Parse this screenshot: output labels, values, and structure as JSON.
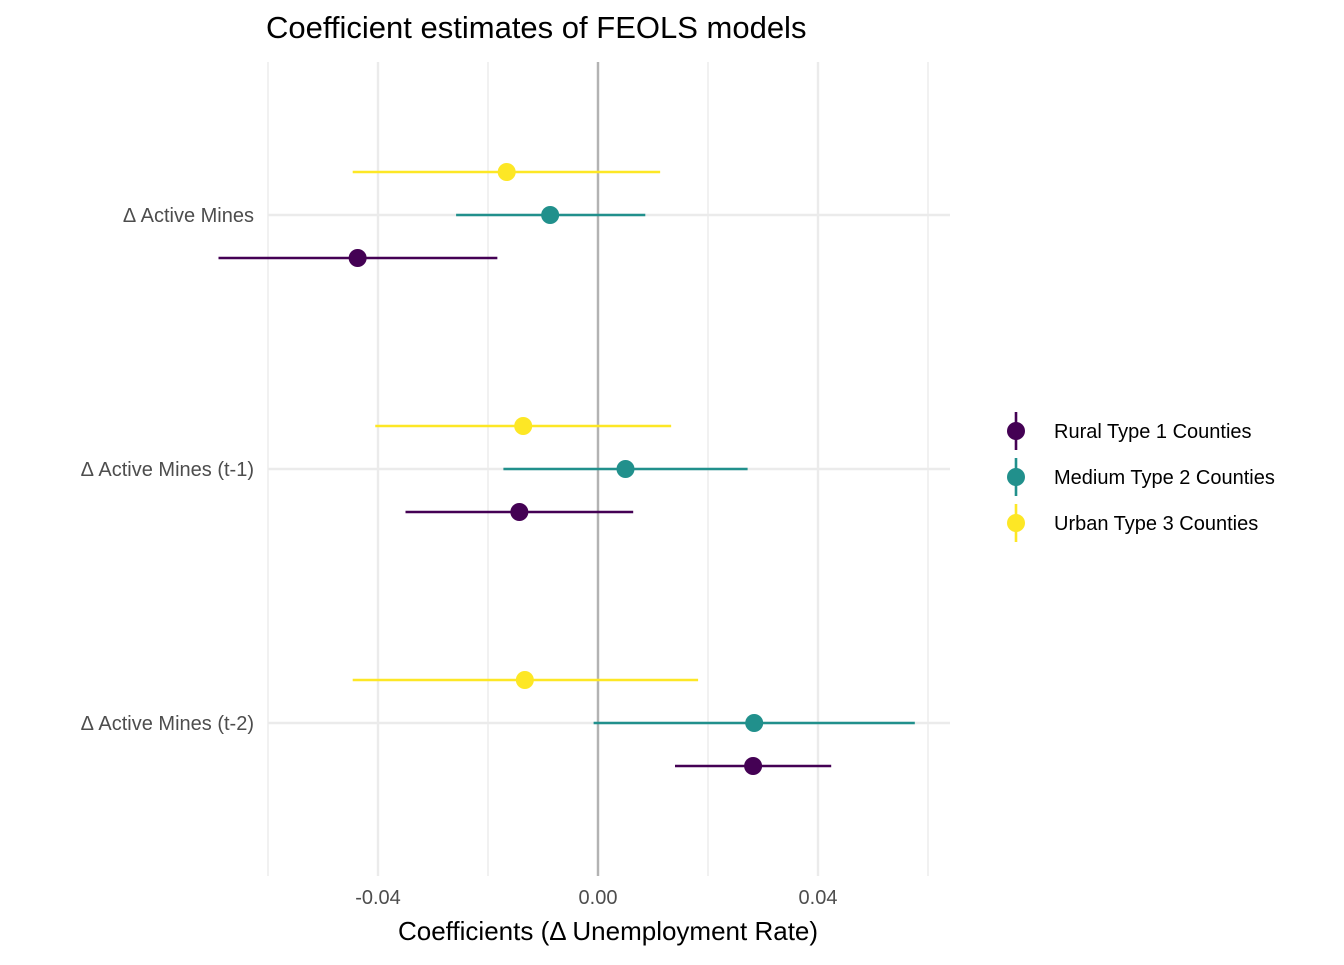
{
  "chart_data": {
    "type": "scatter",
    "subtype": "coefficient-plot-with-error-bars",
    "title": "Coefficient estimates of FEOLS models",
    "xlabel": "Coefficients (Δ Unemployment Rate)",
    "ylabel": "",
    "xlim": [
      -0.06,
      0.064
    ],
    "x_ticks": [
      -0.04,
      0.0,
      0.04
    ],
    "x_tick_labels": [
      "-0.04",
      "0.00",
      "0.04"
    ],
    "grid": true,
    "zero_line": 0,
    "legend_position": "right",
    "categories": [
      "Δ Active Mines",
      "Δ Active Mines (t-1)",
      "Δ Active Mines (t-2)"
    ],
    "series": [
      {
        "name": "Rural Type 1 Counties",
        "color": "#440154",
        "estimates": [
          -0.0437,
          -0.0143,
          0.0282
        ],
        "lower": [
          -0.069,
          -0.035,
          0.014
        ],
        "upper": [
          -0.0183,
          0.0064,
          0.0424
        ]
      },
      {
        "name": "Medium Type 2 Counties",
        "color": "#21908C",
        "estimates": [
          -0.0087,
          0.005,
          0.0284
        ],
        "lower": [
          -0.0258,
          -0.0172,
          -0.0008
        ],
        "upper": [
          0.0086,
          0.0272,
          0.0576
        ]
      },
      {
        "name": "Urban Type 3 Counties",
        "color": "#FDE725",
        "estimates": [
          -0.0166,
          -0.0136,
          -0.0133
        ],
        "lower": [
          -0.0446,
          -0.0405,
          -0.0446
        ],
        "upper": [
          0.0113,
          0.0133,
          0.0182
        ]
      }
    ]
  }
}
